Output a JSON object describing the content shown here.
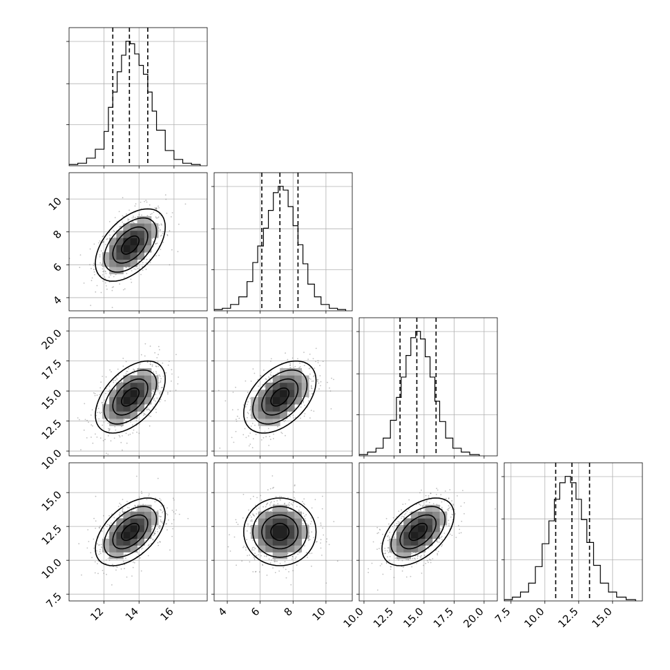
{
  "chart_data": {
    "type": "corner",
    "grid": true,
    "parameters": [
      {
        "index": 0,
        "range": [
          10,
          17.9
        ],
        "ticks": [
          12,
          14,
          16
        ],
        "tick_labels": [
          "12",
          "14",
          "16"
        ],
        "quantiles": [
          12.5,
          13.45,
          14.5
        ],
        "hist_bins": [
          {
            "x0": 10.0,
            "x1": 10.5,
            "h": 0.01
          },
          {
            "x0": 10.5,
            "x1": 11.0,
            "h": 0.02
          },
          {
            "x0": 11.0,
            "x1": 11.5,
            "h": 0.06
          },
          {
            "x0": 11.5,
            "x1": 12.0,
            "h": 0.13
          },
          {
            "x0": 12.0,
            "x1": 12.25,
            "h": 0.27
          },
          {
            "x0": 12.25,
            "x1": 12.5,
            "h": 0.46
          },
          {
            "x0": 12.5,
            "x1": 12.75,
            "h": 0.58
          },
          {
            "x0": 12.75,
            "x1": 13.0,
            "h": 0.74
          },
          {
            "x0": 13.0,
            "x1": 13.25,
            "h": 0.87
          },
          {
            "x0": 13.25,
            "x1": 13.5,
            "h": 0.98
          },
          {
            "x0": 13.5,
            "x1": 13.75,
            "h": 0.96
          },
          {
            "x0": 13.75,
            "x1": 14.0,
            "h": 0.88
          },
          {
            "x0": 14.0,
            "x1": 14.25,
            "h": 0.79
          },
          {
            "x0": 14.25,
            "x1": 14.5,
            "h": 0.72
          },
          {
            "x0": 14.5,
            "x1": 14.75,
            "h": 0.58
          },
          {
            "x0": 14.75,
            "x1": 15.0,
            "h": 0.43
          },
          {
            "x0": 15.0,
            "x1": 15.5,
            "h": 0.28
          },
          {
            "x0": 15.5,
            "x1": 16.0,
            "h": 0.12
          },
          {
            "x0": 16.0,
            "x1": 16.5,
            "h": 0.05
          },
          {
            "x0": 16.5,
            "x1": 17.0,
            "h": 0.02
          },
          {
            "x0": 17.0,
            "x1": 17.5,
            "h": 0.01
          }
        ]
      },
      {
        "index": 1,
        "range": [
          3.2,
          11.6
        ],
        "ticks": [
          4,
          6,
          8,
          10
        ],
        "tick_labels": [
          "4",
          "6",
          "8",
          "10"
        ],
        "quantiles": [
          6.1,
          7.2,
          8.3
        ],
        "hist_bins": [
          {
            "x0": 3.2,
            "x1": 3.7,
            "h": 0.01
          },
          {
            "x0": 3.7,
            "x1": 4.2,
            "h": 0.02
          },
          {
            "x0": 4.2,
            "x1": 4.7,
            "h": 0.05
          },
          {
            "x0": 4.7,
            "x1": 5.2,
            "h": 0.11
          },
          {
            "x0": 5.2,
            "x1": 5.55,
            "h": 0.23
          },
          {
            "x0": 5.55,
            "x1": 5.85,
            "h": 0.38
          },
          {
            "x0": 5.85,
            "x1": 6.2,
            "h": 0.51
          },
          {
            "x0": 6.2,
            "x1": 6.5,
            "h": 0.65
          },
          {
            "x0": 6.5,
            "x1": 6.8,
            "h": 0.79
          },
          {
            "x0": 6.8,
            "x1": 7.1,
            "h": 0.93
          },
          {
            "x0": 7.1,
            "x1": 7.4,
            "h": 0.98
          },
          {
            "x0": 7.4,
            "x1": 7.7,
            "h": 0.95
          },
          {
            "x0": 7.7,
            "x1": 8.0,
            "h": 0.82
          },
          {
            "x0": 8.0,
            "x1": 8.3,
            "h": 0.67
          },
          {
            "x0": 8.3,
            "x1": 8.6,
            "h": 0.52
          },
          {
            "x0": 8.6,
            "x1": 8.9,
            "h": 0.37
          },
          {
            "x0": 8.9,
            "x1": 9.3,
            "h": 0.21
          },
          {
            "x0": 9.3,
            "x1": 9.7,
            "h": 0.11
          },
          {
            "x0": 9.7,
            "x1": 10.2,
            "h": 0.05
          },
          {
            "x0": 10.2,
            "x1": 10.7,
            "h": 0.02
          },
          {
            "x0": 10.7,
            "x1": 11.2,
            "h": 0.01
          }
        ]
      },
      {
        "index": 2,
        "range": [
          9.6,
          21.1
        ],
        "ticks": [
          10.0,
          12.5,
          15.0,
          17.5,
          20.0
        ],
        "tick_labels": [
          "10.0",
          "12.5",
          "15.0",
          "17.5",
          "20.0"
        ],
        "quantiles": [
          13.0,
          14.4,
          16.0
        ],
        "hist_bins": [
          {
            "x0": 9.6,
            "x1": 10.3,
            "h": 0.01
          },
          {
            "x0": 10.3,
            "x1": 11.0,
            "h": 0.03
          },
          {
            "x0": 11.0,
            "x1": 11.6,
            "h": 0.06
          },
          {
            "x0": 11.6,
            "x1": 12.2,
            "h": 0.14
          },
          {
            "x0": 12.2,
            "x1": 12.7,
            "h": 0.28
          },
          {
            "x0": 12.7,
            "x1": 13.1,
            "h": 0.46
          },
          {
            "x0": 13.1,
            "x1": 13.5,
            "h": 0.62
          },
          {
            "x0": 13.5,
            "x1": 13.9,
            "h": 0.79
          },
          {
            "x0": 13.9,
            "x1": 14.3,
            "h": 0.93
          },
          {
            "x0": 14.3,
            "x1": 14.7,
            "h": 0.98
          },
          {
            "x0": 14.7,
            "x1": 15.1,
            "h": 0.92
          },
          {
            "x0": 15.1,
            "x1": 15.5,
            "h": 0.78
          },
          {
            "x0": 15.5,
            "x1": 15.9,
            "h": 0.62
          },
          {
            "x0": 15.9,
            "x1": 16.3,
            "h": 0.43
          },
          {
            "x0": 16.3,
            "x1": 16.8,
            "h": 0.27
          },
          {
            "x0": 16.8,
            "x1": 17.4,
            "h": 0.14
          },
          {
            "x0": 17.4,
            "x1": 18.1,
            "h": 0.06
          },
          {
            "x0": 18.1,
            "x1": 18.8,
            "h": 0.03
          },
          {
            "x0": 18.8,
            "x1": 19.6,
            "h": 0.01
          }
        ]
      },
      {
        "index": 3,
        "range": [
          7.0,
          17.2
        ],
        "ticks": [
          7.5,
          10.0,
          12.5,
          15.0
        ],
        "tick_labels": [
          "7.5",
          "10.0",
          "12.5",
          "15.0"
        ],
        "quantiles": [
          10.8,
          12.0,
          13.3
        ],
        "hist_bins": [
          {
            "x0": 7.0,
            "x1": 7.6,
            "h": 0.01
          },
          {
            "x0": 7.6,
            "x1": 8.2,
            "h": 0.03
          },
          {
            "x0": 8.2,
            "x1": 8.8,
            "h": 0.07
          },
          {
            "x0": 8.8,
            "x1": 9.3,
            "h": 0.14
          },
          {
            "x0": 9.3,
            "x1": 9.8,
            "h": 0.27
          },
          {
            "x0": 9.8,
            "x1": 10.3,
            "h": 0.45
          },
          {
            "x0": 10.3,
            "x1": 10.7,
            "h": 0.63
          },
          {
            "x0": 10.7,
            "x1": 11.1,
            "h": 0.8
          },
          {
            "x0": 11.1,
            "x1": 11.5,
            "h": 0.93
          },
          {
            "x0": 11.5,
            "x1": 11.9,
            "h": 0.98
          },
          {
            "x0": 11.9,
            "x1": 12.3,
            "h": 0.93
          },
          {
            "x0": 12.3,
            "x1": 12.7,
            "h": 0.8
          },
          {
            "x0": 12.7,
            "x1": 13.1,
            "h": 0.64
          },
          {
            "x0": 13.1,
            "x1": 13.6,
            "h": 0.46
          },
          {
            "x0": 13.6,
            "x1": 14.1,
            "h": 0.28
          },
          {
            "x0": 14.1,
            "x1": 14.7,
            "h": 0.14
          },
          {
            "x0": 14.7,
            "x1": 15.3,
            "h": 0.07
          },
          {
            "x0": 15.3,
            "x1": 16.0,
            "h": 0.03
          },
          {
            "x0": 16.0,
            "x1": 16.7,
            "h": 0.01
          }
        ]
      }
    ],
    "correlations": [
      {
        "i": 0,
        "j": 1,
        "rho": 0.5
      },
      {
        "i": 0,
        "j": 2,
        "rho": 0.5
      },
      {
        "i": 0,
        "j": 3,
        "rho": 0.5
      },
      {
        "i": 1,
        "j": 2,
        "rho": 0.45
      },
      {
        "i": 1,
        "j": 3,
        "rho": 0.0
      },
      {
        "i": 2,
        "j": 3,
        "rho": 0.5
      }
    ],
    "means": [
      13.5,
      7.2,
      14.5,
      12.1
    ],
    "stds": [
      1.0,
      1.1,
      1.5,
      1.25
    ],
    "contour_levels_sigma": [
      0.5,
      1.0,
      1.5,
      2.0
    ],
    "colors": {
      "hist_line": "#000000",
      "quantile_line": "#000000",
      "contour_line": "#000000",
      "scatter_point": "#6f6f6f",
      "grid": "#b0b0b0",
      "density_dark": "#1a1a1a",
      "density_light": "#ffffff"
    }
  }
}
